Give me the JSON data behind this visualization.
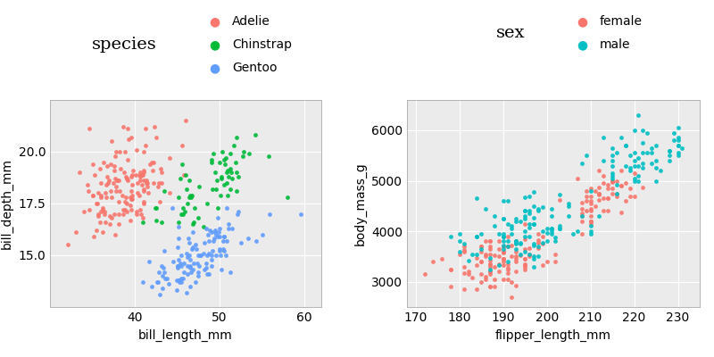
{
  "plot1": {
    "xlabel": "bill_length_mm",
    "ylabel": "bill_depth_mm",
    "legend_title": "species",
    "legend_labels": [
      "Adelie",
      "Chinstrap",
      "Gentoo"
    ],
    "colors": [
      "#F8766D",
      "#00BA38",
      "#619CFF"
    ],
    "xlim": [
      30,
      62
    ],
    "ylim": [
      12.5,
      22.5
    ],
    "xticks": [
      40,
      50,
      60
    ],
    "yticks": [
      15.0,
      17.5,
      20.0
    ]
  },
  "plot2": {
    "xlabel": "flipper_length_mm",
    "ylabel": "body_mass_g",
    "legend_title": "sex",
    "legend_labels": [
      "female",
      "male"
    ],
    "colors": [
      "#F8766D",
      "#00BFC4"
    ],
    "xlim": [
      168,
      235
    ],
    "ylim": [
      2500,
      6600
    ],
    "xticks": [
      170,
      180,
      190,
      200,
      210,
      220,
      230
    ],
    "yticks": [
      3000,
      4000,
      5000,
      6000
    ]
  },
  "bg_color": "#EBEBEB",
  "grid_color": "#FFFFFF",
  "marker_size": 12,
  "font_size": 10,
  "legend_title_fontsize": 14,
  "legend_item_fontsize": 10
}
